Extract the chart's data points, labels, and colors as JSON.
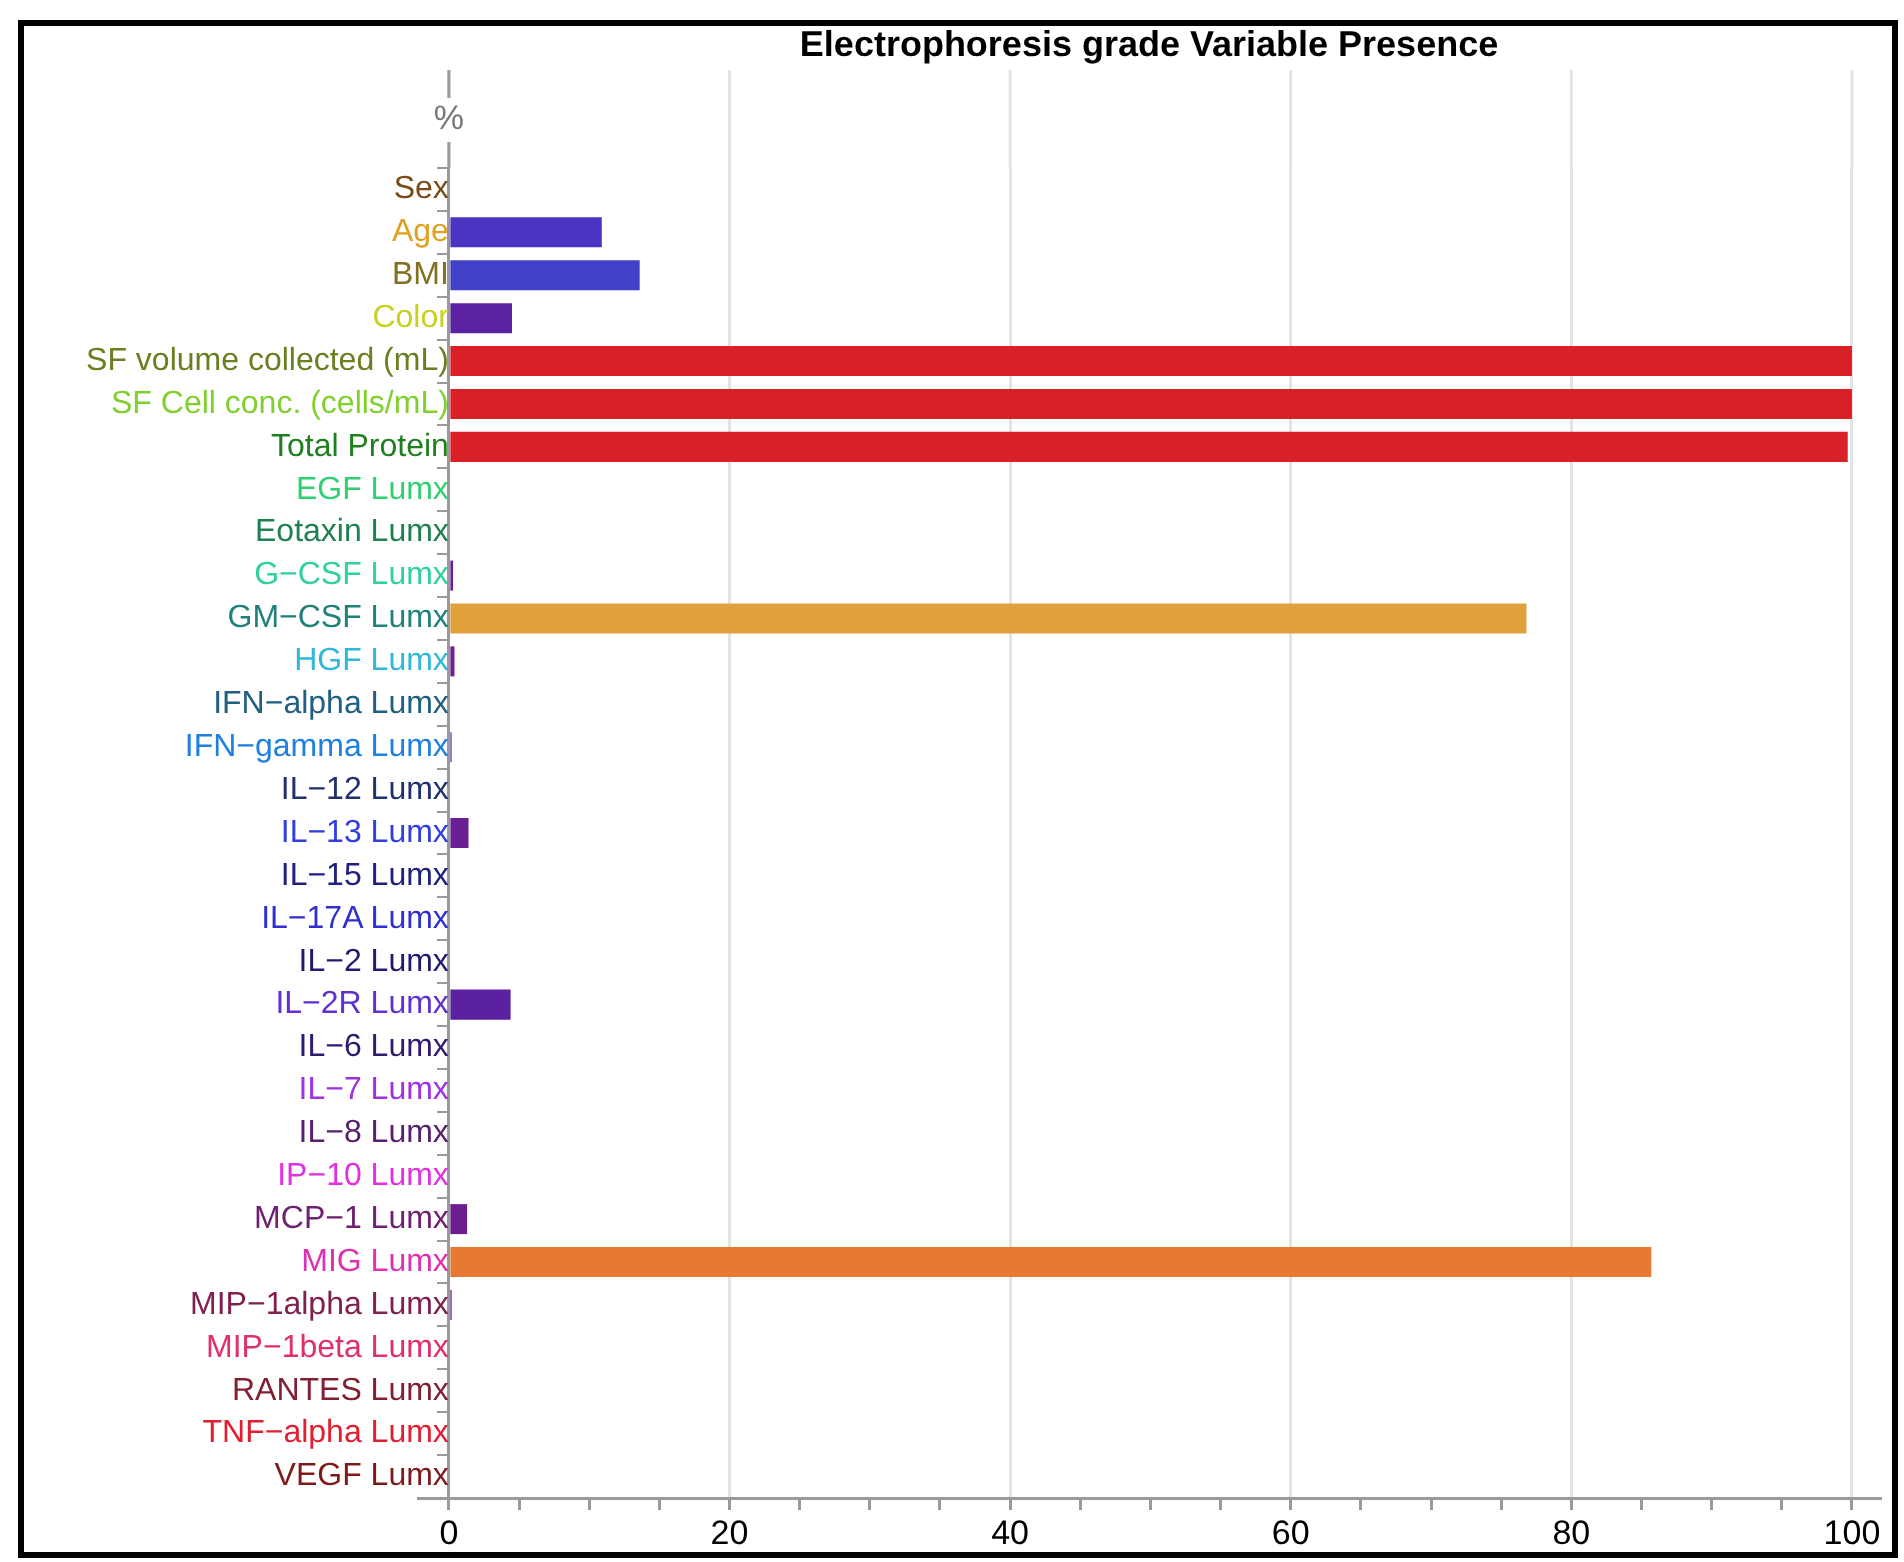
{
  "chart_data": {
    "type": "bar",
    "orientation": "horizontal",
    "title": "Electrophoresis grade Variable Presence",
    "ylabel": "%",
    "categories": [
      "Sex",
      "Age",
      "BMI",
      "Color",
      "SF volume collected (mL)",
      "SF Cell conc. (cells/mL)",
      "Total Protein",
      "EGF Lumx",
      "Eotaxin Lumx",
      "G−CSF Lumx",
      "GM−CSF Lumx",
      "HGF Lumx",
      "IFN−alpha Lumx",
      "IFN−gamma Lumx",
      "IL−12 Lumx",
      "IL−13 Lumx",
      "IL−15 Lumx",
      "IL−17A Lumx",
      "IL−2 Lumx",
      "IL−2R Lumx",
      "IL−6 Lumx",
      "IL−7 Lumx",
      "IL−8 Lumx",
      "IP−10 Lumx",
      "MCP−1 Lumx",
      "MIG Lumx",
      "MIP−1alpha Lumx",
      "MIP−1beta Lumx",
      "RANTES Lumx",
      "TNF−alpha Lumx",
      "VEGF Lumx"
    ],
    "values": [
      0,
      10.9,
      13.6,
      4.5,
      100,
      100,
      99.7,
      0,
      0,
      0.3,
      76.8,
      0.4,
      0,
      0.2,
      0,
      1.4,
      0,
      0,
      0,
      4.4,
      0,
      0,
      0,
      0,
      1.3,
      85.7,
      0.2,
      0,
      0,
      0,
      0
    ],
    "colors": [
      "#6a2090",
      "#4a35c2",
      "#4242c8",
      "#5b23a3",
      "#d92027",
      "#d92027",
      "#d92027",
      "#6a2090",
      "#6a2090",
      "#6a2090",
      "#e0a03b",
      "#70208e",
      "#6a2090",
      "#5a3ab0",
      "#6a2090",
      "#6b1f94",
      "#6a2090",
      "#6a2090",
      "#6a2090",
      "#5c21a2",
      "#6a2090",
      "#6a2090",
      "#6a2090",
      "#6a2090",
      "#6b1f8f",
      "#e67a33",
      "#6a2090",
      "#6a2090",
      "#6a2090",
      "#6a2090",
      "#6a2090"
    ],
    "xlim": [
      -2.2,
      102
    ],
    "xticks": [
      0,
      {
        "value": 5,
        "label": null
      },
      {
        "value": 10,
        "label": null
      },
      {
        "value": 15,
        "label": null
      },
      20,
      {
        "value": 25,
        "label": null
      },
      {
        "value": 30,
        "label": null
      },
      {
        "value": 35,
        "label": null
      },
      40,
      {
        "value": 45,
        "label": null
      },
      {
        "value": 50,
        "label": null
      },
      {
        "value": 55,
        "label": null
      },
      60,
      {
        "value": 65,
        "label": null
      },
      {
        "value": 70,
        "label": null
      },
      {
        "value": 75,
        "label": null
      },
      80,
      {
        "value": 85,
        "label": null
      },
      {
        "value": 90,
        "label": null
      },
      {
        "value": 95,
        "label": null
      },
      100
    ],
    "grid": "x"
  }
}
